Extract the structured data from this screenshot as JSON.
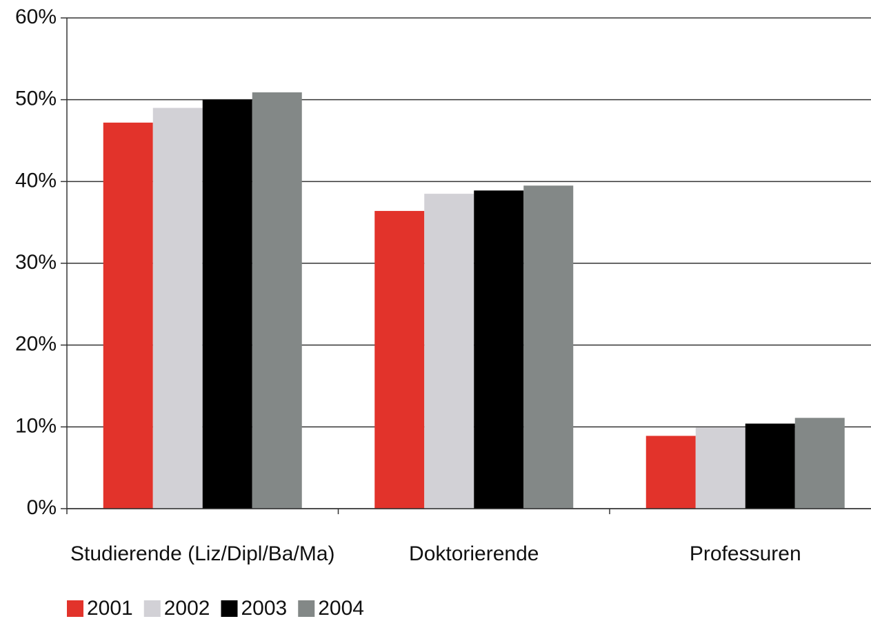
{
  "chart_data": {
    "type": "bar",
    "categories": [
      "Studierende (Liz/Dipl/Ba/Ma)",
      "Doktorierende",
      "Professuren"
    ],
    "series": [
      {
        "name": "2001",
        "color": "#e2332b",
        "values": [
          47.2,
          36.4,
          8.9
        ]
      },
      {
        "name": "2002",
        "color": "#d2d1d6",
        "values": [
          49.0,
          38.5,
          9.9
        ]
      },
      {
        "name": "2003",
        "color": "#000000",
        "values": [
          50.0,
          38.9,
          10.4
        ]
      },
      {
        "name": "2004",
        "color": "#838887",
        "values": [
          50.9,
          39.5,
          11.1
        ]
      }
    ],
    "ylim": [
      0,
      60
    ],
    "yticks": [
      {
        "value": 0,
        "label": "0%"
      },
      {
        "value": 10,
        "label": "10%"
      },
      {
        "value": 20,
        "label": "20%"
      },
      {
        "value": 30,
        "label": "30%"
      },
      {
        "value": 40,
        "label": "40%"
      },
      {
        "value": 50,
        "label": "50%"
      },
      {
        "value": 60,
        "label": "60%"
      }
    ],
    "grid": true,
    "legend": "bottom-left"
  }
}
